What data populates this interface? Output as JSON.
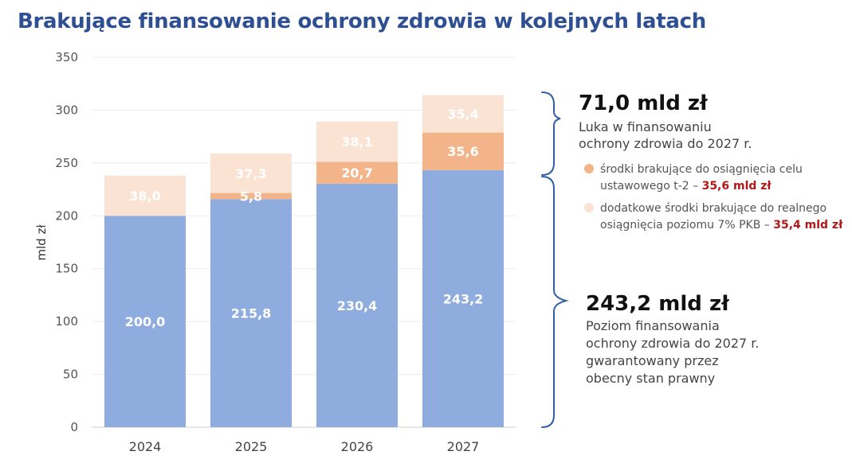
{
  "title": "Brakujące finansowanie ochrony zdrowia w kolejnych latach",
  "colors": {
    "title": "#2f4f94",
    "base": "#8facdf",
    "shortfall": "#f3b48a",
    "additional": "#fbe3d3",
    "brace": "#2f5fa8",
    "highlight": "#b01818"
  },
  "chart_data": {
    "type": "bar",
    "stacked": true,
    "categories": [
      "2024",
      "2025",
      "2026",
      "2027"
    ],
    "series": [
      {
        "values": [
          200.0,
          215.8,
          230.4,
          243.2
        ],
        "labels": [
          "200,0",
          "215,8",
          "230,4",
          "243,2"
        ]
      },
      {
        "values": [
          0,
          5.8,
          20.7,
          35.6
        ],
        "labels": [
          "",
          "5,8",
          "20,7",
          "35,6"
        ]
      },
      {
        "values": [
          38.0,
          37.3,
          38.1,
          35.4
        ],
        "labels": [
          "38,0",
          "37,3",
          "38,1",
          "35,4"
        ]
      }
    ],
    "ylabel": "mld zł",
    "ylim": [
      0,
      350
    ],
    "yticks": [
      0,
      50,
      100,
      150,
      200,
      250,
      300,
      350
    ],
    "grid": true
  },
  "annotations": {
    "gap": {
      "value": "71,0 mld zł",
      "lines": [
        "Luka w finansowaniu",
        "ochrony zdrowia do 2027 r."
      ]
    },
    "legend": [
      {
        "lines": [
          "środki brakujące do osiągnięcia celu",
          "ustawowego t-2 – "
        ],
        "highlight": "35,6 mld zł"
      },
      {
        "lines": [
          "dodatkowe środki brakujące do realnego",
          "osiągnięcia poziomu 7% PKB – "
        ],
        "highlight": "35,4 mld zł"
      }
    ],
    "base": {
      "value": "243,2 mld zł",
      "lines": [
        "Poziom finansowania",
        "ochrony zdrowia do 2027 r.",
        "gwarantowany przez",
        "obecny stan prawny"
      ]
    }
  }
}
